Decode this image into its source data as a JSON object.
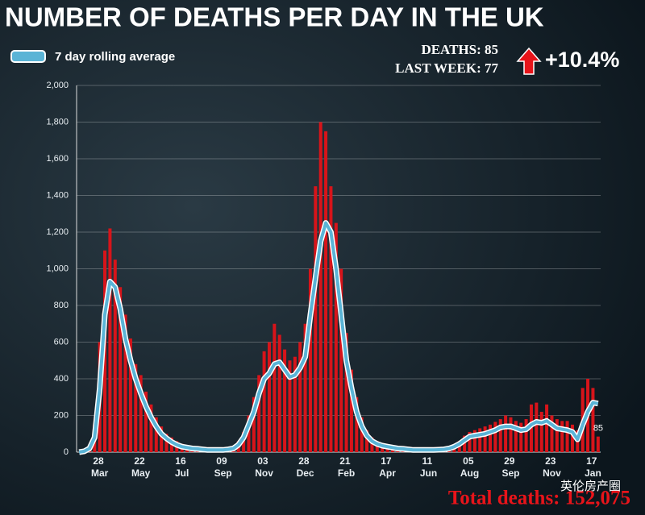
{
  "chart_data": {
    "type": "bar_line",
    "title": "NUMBER OF DEATHS PER DAY IN THE UK",
    "annotations": [
      "DEATHS: 85",
      "LAST WEEK: 77",
      "+10.4%",
      "Total deaths: 152,075",
      "英伦房产圈"
    ],
    "categories": [
      null,
      null,
      null,
      null,
      "28 Mar",
      null,
      null,
      null,
      null,
      null,
      null,
      null,
      "22 May",
      null,
      null,
      null,
      null,
      null,
      null,
      null,
      "16 Jul",
      null,
      null,
      null,
      null,
      null,
      null,
      null,
      "09 Sep",
      null,
      null,
      null,
      null,
      null,
      null,
      null,
      "03 Nov",
      null,
      null,
      null,
      null,
      null,
      null,
      null,
      "28 Dec",
      null,
      null,
      null,
      null,
      null,
      null,
      null,
      "21 Feb",
      null,
      null,
      null,
      null,
      null,
      null,
      null,
      "17 Apr",
      null,
      null,
      null,
      null,
      null,
      null,
      null,
      "11 Jun",
      null,
      null,
      null,
      null,
      null,
      null,
      null,
      "05 Aug",
      null,
      null,
      null,
      null,
      null,
      null,
      null,
      "29 Sep",
      null,
      null,
      null,
      null,
      null,
      null,
      null,
      "23 Nov",
      null,
      null,
      null,
      null,
      null,
      null,
      null,
      "17 Jan",
      null
    ],
    "series": [
      {
        "color": "#d7141a",
        "values": [
          0,
          10,
          40,
          150,
          600,
          1100,
          1220,
          1050,
          900,
          750,
          620,
          480,
          420,
          330,
          260,
          190,
          140,
          100,
          80,
          60,
          45,
          35,
          30,
          25,
          20,
          18,
          15,
          15,
          15,
          20,
          30,
          60,
          110,
          200,
          300,
          420,
          550,
          600,
          700,
          640,
          560,
          500,
          520,
          600,
          700,
          1000,
          1450,
          1800,
          1750,
          1450,
          1250,
          1000,
          650,
          450,
          300,
          190,
          120,
          80,
          60,
          45,
          40,
          35,
          30,
          25,
          20,
          18,
          18,
          18,
          18,
          18,
          20,
          22,
          28,
          40,
          60,
          90,
          110,
          120,
          130,
          140,
          150,
          165,
          180,
          200,
          190,
          170,
          160,
          180,
          260,
          270,
          220,
          260,
          200,
          180,
          170,
          170,
          150,
          120,
          350,
          400,
          350,
          85
        ]
      },
      {
        "name": "7 day rolling average",
        "color": "#5ab4d6",
        "values": [
          0,
          5,
          20,
          80,
          350,
          750,
          930,
          900,
          780,
          620,
          500,
          400,
          320,
          250,
          190,
          140,
          100,
          75,
          55,
          40,
          30,
          25,
          20,
          18,
          15,
          12,
          12,
          12,
          12,
          15,
          20,
          40,
          80,
          150,
          220,
          320,
          400,
          430,
          480,
          490,
          450,
          410,
          420,
          460,
          520,
          750,
          950,
          1150,
          1250,
          1200,
          1000,
          750,
          500,
          350,
          220,
          140,
          90,
          60,
          45,
          35,
          30,
          25,
          20,
          18,
          15,
          12,
          12,
          12,
          12,
          12,
          13,
          15,
          20,
          30,
          45,
          65,
          85,
          90,
          95,
          100,
          110,
          120,
          135,
          140,
          140,
          130,
          120,
          125,
          150,
          165,
          160,
          170,
          150,
          130,
          125,
          120,
          110,
          70,
          150,
          220,
          270,
          265
        ]
      }
    ],
    "ylim": [
      0,
      2000
    ],
    "yticks": [
      0,
      200,
      400,
      600,
      800,
      {
        "value": 1000,
        "label": "1,000"
      },
      {
        "value": 1200,
        "label": "1,200"
      },
      {
        "value": 1400,
        "label": "1,400"
      },
      {
        "value": 1600,
        "label": "1,600"
      },
      {
        "value": 1800,
        "label": "1,800"
      },
      {
        "value": 2000,
        "label": "2,000"
      }
    ],
    "grid": true
  }
}
